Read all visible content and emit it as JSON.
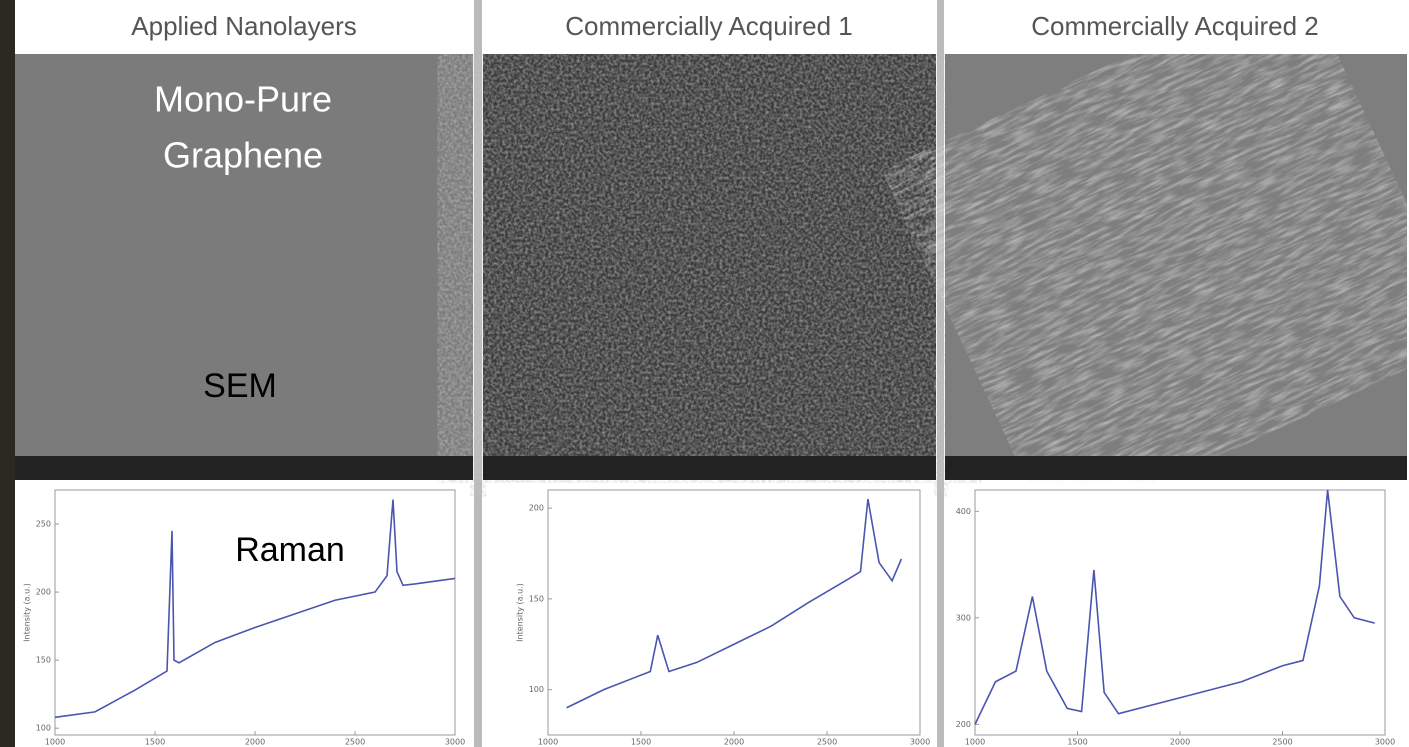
{
  "panels": [
    {
      "title": "Applied Nanolayers"
    },
    {
      "title": "Commercially Acquired 1"
    },
    {
      "title": "Commercially Acquired 2"
    }
  ],
  "overlay_labels": {
    "sample": [
      "Mono-Pure",
      "Graphene"
    ],
    "sem": "SEM",
    "raman": "Raman"
  },
  "chart_data": [
    {
      "type": "line",
      "x": [
        1000,
        1200,
        1400,
        1560,
        1585,
        1595,
        1620,
        1800,
        2000,
        2200,
        2400,
        2600,
        2660,
        2690,
        2710,
        2740,
        2800,
        3000
      ],
      "series": [
        {
          "color": "#4a55b0",
          "values": [
            108,
            112,
            128,
            142,
            245,
            150,
            148,
            163,
            174,
            184,
            194,
            200,
            212,
            268,
            215,
            205,
            206,
            210
          ]
        }
      ],
      "xlim": [
        1000,
        3000
      ],
      "xticks": [
        1000,
        1500,
        2000,
        2500,
        3000
      ],
      "ylim": [
        95,
        275
      ],
      "yticks": [
        100,
        150,
        200,
        250
      ],
      "y_label": "Intensity (a.u.)"
    },
    {
      "type": "line",
      "x": [
        1100,
        1300,
        1550,
        1590,
        1650,
        1800,
        2000,
        2200,
        2400,
        2600,
        2680,
        2720,
        2780,
        2850,
        2900
      ],
      "series": [
        {
          "color": "#4a55b0",
          "values": [
            90,
            100,
            110,
            130,
            110,
            115,
            125,
            135,
            148,
            160,
            165,
            205,
            170,
            160,
            172
          ]
        }
      ],
      "xlim": [
        1000,
        3000
      ],
      "xticks": [
        1000,
        1500,
        2000,
        2500,
        3000
      ],
      "ylim": [
        75,
        210
      ],
      "yticks": [
        100,
        150,
        200
      ],
      "y_label": "Intensity (a.u.)"
    },
    {
      "type": "line",
      "x": [
        1000,
        1100,
        1200,
        1280,
        1350,
        1450,
        1520,
        1580,
        1630,
        1700,
        2000,
        2300,
        2500,
        2600,
        2680,
        2720,
        2780,
        2850,
        2950
      ],
      "series": [
        {
          "color": "#4a55b0",
          "values": [
            200,
            240,
            250,
            320,
            250,
            215,
            212,
            345,
            230,
            210,
            225,
            240,
            255,
            260,
            330,
            420,
            320,
            300,
            295
          ]
        }
      ],
      "xlim": [
        1000,
        3000
      ],
      "xticks": [
        1000,
        1500,
        2000,
        2500,
        3000
      ],
      "ylim": [
        190,
        420
      ],
      "yticks": [
        200,
        300,
        400
      ]
    }
  ]
}
